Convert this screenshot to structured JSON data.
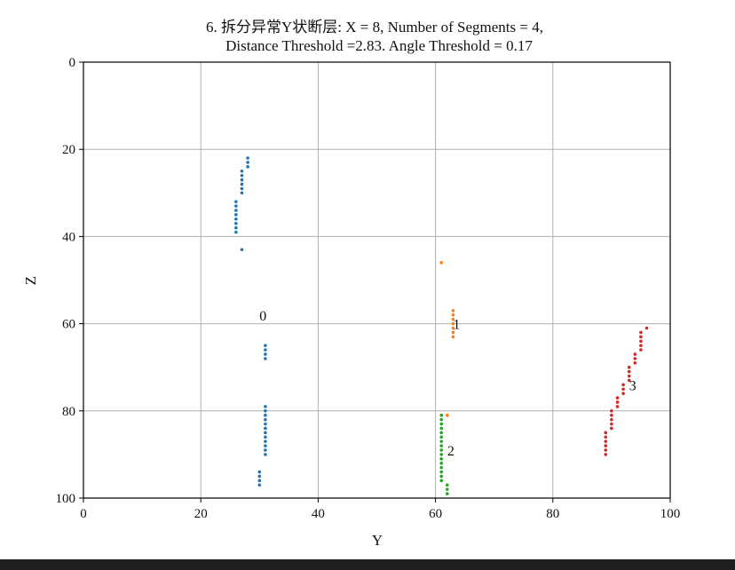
{
  "title_line1": "6. 拆分异常Y状断层: X = 8, Number of Segments = 4,",
  "title_line2": "Distance Threshold =2.83. Angle Threshold = 0.17",
  "chart_data": {
    "type": "scatter",
    "title": "6. 拆分异常Y状断层: X = 8, Number of Segments = 4, Distance Threshold =2.83. Angle Threshold = 0.17",
    "xlabel": "Y",
    "ylabel": "Z",
    "xlim": [
      0,
      100
    ],
    "ylim": [
      100,
      0
    ],
    "y_inverted": true,
    "grid": true,
    "xticks": [
      "0",
      "20",
      "40",
      "60",
      "80",
      "100"
    ],
    "yticks": [
      "0",
      "20",
      "40",
      "60",
      "80",
      "100"
    ],
    "series": [
      {
        "color": "#1f77b4",
        "points": [
          [
            28,
            22
          ],
          [
            28,
            23
          ],
          [
            28,
            24
          ],
          [
            27,
            25
          ],
          [
            27,
            26
          ],
          [
            27,
            27
          ],
          [
            27,
            28
          ],
          [
            27,
            29
          ],
          [
            27,
            30
          ],
          [
            26,
            32
          ],
          [
            26,
            33
          ],
          [
            26,
            34
          ],
          [
            26,
            35
          ],
          [
            26,
            36
          ],
          [
            26,
            37
          ],
          [
            26,
            38
          ],
          [
            26,
            39
          ],
          [
            27,
            43
          ],
          [
            31,
            65
          ],
          [
            31,
            66
          ],
          [
            31,
            67
          ],
          [
            31,
            68
          ],
          [
            31,
            79
          ],
          [
            31,
            80
          ],
          [
            31,
            81
          ],
          [
            31,
            82
          ],
          [
            31,
            83
          ],
          [
            31,
            84
          ],
          [
            31,
            85
          ],
          [
            31,
            86
          ],
          [
            31,
            87
          ],
          [
            31,
            88
          ],
          [
            31,
            89
          ],
          [
            31,
            90
          ],
          [
            30,
            94
          ],
          [
            30,
            95
          ],
          [
            30,
            96
          ],
          [
            30,
            97
          ]
        ]
      },
      {
        "color": "#ff7f0e",
        "points": [
          [
            61,
            46
          ],
          [
            63,
            57
          ],
          [
            63,
            58
          ],
          [
            63,
            59
          ],
          [
            63,
            60
          ],
          [
            63,
            61
          ],
          [
            63,
            62
          ],
          [
            63,
            63
          ],
          [
            62,
            81
          ]
        ]
      },
      {
        "color": "#2ca02c",
        "points": [
          [
            61,
            81
          ],
          [
            61,
            82
          ],
          [
            61,
            83
          ],
          [
            61,
            84
          ],
          [
            61,
            85
          ],
          [
            61,
            86
          ],
          [
            61,
            87
          ],
          [
            61,
            88
          ],
          [
            61,
            89
          ],
          [
            61,
            90
          ],
          [
            61,
            91
          ],
          [
            61,
            92
          ],
          [
            61,
            93
          ],
          [
            61,
            94
          ],
          [
            61,
            95
          ],
          [
            61,
            96
          ],
          [
            62,
            97
          ],
          [
            62,
            98
          ],
          [
            62,
            99
          ]
        ]
      },
      {
        "color": "#d62728",
        "points": [
          [
            96,
            61
          ],
          [
            95,
            62
          ],
          [
            95,
            63
          ],
          [
            95,
            64
          ],
          [
            95,
            65
          ],
          [
            95,
            66
          ],
          [
            94,
            67
          ],
          [
            94,
            68
          ],
          [
            94,
            69
          ],
          [
            93,
            70
          ],
          [
            93,
            71
          ],
          [
            93,
            72
          ],
          [
            93,
            73
          ],
          [
            92,
            74
          ],
          [
            92,
            75
          ],
          [
            92,
            76
          ],
          [
            91,
            77
          ],
          [
            91,
            78
          ],
          [
            91,
            79
          ],
          [
            90,
            80
          ],
          [
            90,
            81
          ],
          [
            90,
            82
          ],
          [
            90,
            83
          ],
          [
            90,
            84
          ],
          [
            89,
            85
          ],
          [
            89,
            86
          ],
          [
            89,
            87
          ],
          [
            89,
            88
          ],
          [
            89,
            89
          ],
          [
            89,
            90
          ]
        ]
      }
    ],
    "annotations": [
      {
        "text": "0",
        "x": 30,
        "y": 58
      },
      {
        "text": "1",
        "x": 63,
        "y": 60
      },
      {
        "text": "2",
        "x": 62,
        "y": 89
      },
      {
        "text": "3",
        "x": 93,
        "y": 74
      }
    ]
  }
}
